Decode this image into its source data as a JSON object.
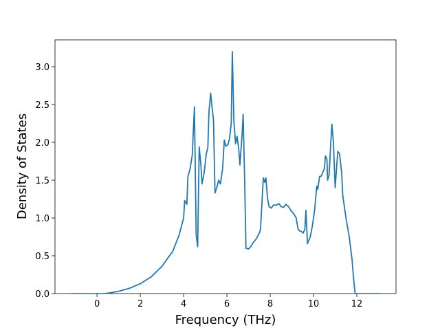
{
  "chart_data": {
    "type": "line",
    "xlabel": "Frequency (THz)",
    "ylabel": "Density of States",
    "color": "#1f77b4",
    "x": [
      -1.2,
      0.3,
      0.5,
      1,
      1.5,
      2,
      2.5,
      3,
      3.5,
      3.8,
      4.0,
      4.05,
      4.15,
      4.2,
      4.3,
      4.4,
      4.5,
      4.58,
      4.65,
      4.72,
      4.8,
      4.85,
      4.95,
      5.05,
      5.12,
      5.17,
      5.25,
      5.3,
      5.38,
      5.45,
      5.55,
      5.62,
      5.7,
      5.8,
      5.88,
      5.95,
      6.05,
      6.12,
      6.2,
      6.25,
      6.32,
      6.4,
      6.47,
      6.55,
      6.6,
      6.7,
      6.75,
      6.82,
      6.88,
      7.0,
      7.1,
      7.2,
      7.35,
      7.5,
      7.55,
      7.62,
      7.68,
      7.75,
      7.8,
      7.88,
      7.95,
      8.05,
      8.15,
      8.3,
      8.4,
      8.5,
      8.62,
      8.72,
      8.85,
      8.95,
      9.1,
      9.2,
      9.28,
      9.35,
      9.45,
      9.52,
      9.6,
      9.65,
      9.72,
      9.85,
      9.95,
      10.05,
      10.15,
      10.2,
      10.28,
      10.35,
      10.45,
      10.5,
      10.55,
      10.62,
      10.65,
      10.72,
      10.8,
      10.85,
      10.92,
      11.0,
      11.05,
      11.12,
      11.2,
      11.3,
      11.35,
      11.5,
      11.65,
      11.78,
      11.85,
      11.92,
      12.0,
      13.1
    ],
    "values": [
      0,
      0,
      0.005,
      0.03,
      0.07,
      0.13,
      0.22,
      0.36,
      0.56,
      0.78,
      1.0,
      1.23,
      1.18,
      1.55,
      1.65,
      1.83,
      2.47,
      0.78,
      0.62,
      1.94,
      1.7,
      1.45,
      1.6,
      1.85,
      1.93,
      2.4,
      2.65,
      2.5,
      2.3,
      1.33,
      1.42,
      1.5,
      1.45,
      1.65,
      2.03,
      1.95,
      1.97,
      2.05,
      2.25,
      3.2,
      2.3,
      1.98,
      2.08,
      1.9,
      1.7,
      2.1,
      2.37,
      1.5,
      0.6,
      0.59,
      0.62,
      0.67,
      0.72,
      0.8,
      0.85,
      1.2,
      1.53,
      1.47,
      1.53,
      1.25,
      1.15,
      1.13,
      1.17,
      1.17,
      1.19,
      1.15,
      1.14,
      1.18,
      1.15,
      1.1,
      1.05,
      1.0,
      0.86,
      0.83,
      0.82,
      0.8,
      0.85,
      1.1,
      0.66,
      0.75,
      0.9,
      1.1,
      1.42,
      1.38,
      1.55,
      1.55,
      1.62,
      1.65,
      1.82,
      1.78,
      1.5,
      1.57,
      2.0,
      2.24,
      2.0,
      1.4,
      1.6,
      1.88,
      1.85,
      1.6,
      1.3,
      1.0,
      0.75,
      0.45,
      0.2,
      0.0,
      0,
      0
    ],
    "xlim": [
      -1.94,
      13.81
    ],
    "xticks": [
      0,
      2,
      4,
      6,
      8,
      10,
      12
    ],
    "ylim": [
      0,
      3.355
    ],
    "yticks": [
      {
        "value": 0,
        "label": "0.0"
      },
      {
        "value": 0.5,
        "label": "0.5"
      },
      {
        "value": 1,
        "label": "1.0"
      },
      {
        "value": 1.5,
        "label": "1.5"
      },
      {
        "value": 2,
        "label": "2.0"
      },
      {
        "value": 2.5,
        "label": "2.5"
      },
      {
        "value": 3,
        "label": "3.0"
      }
    ]
  }
}
